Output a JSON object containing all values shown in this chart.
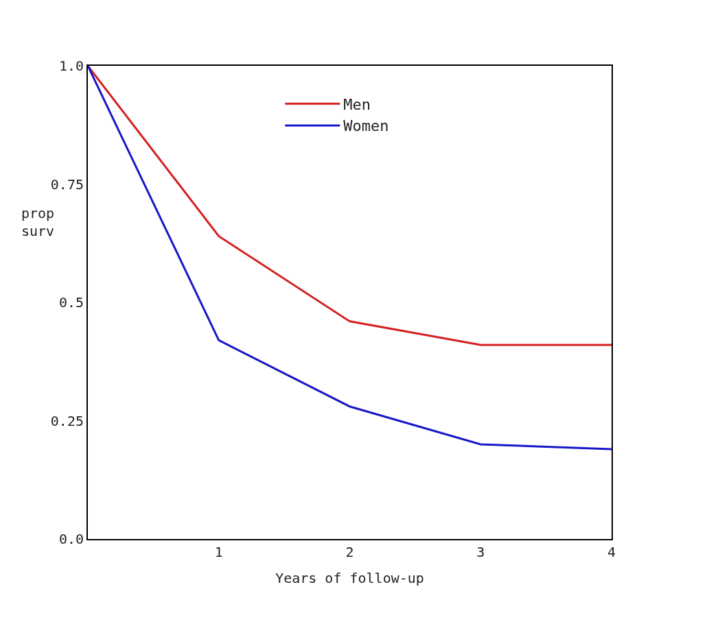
{
  "chart_data": {
    "type": "line",
    "xlabel": "Years of follow-up",
    "ylabel": "prop\nsurv",
    "x": [
      0,
      1,
      2,
      3,
      4
    ],
    "series": [
      {
        "name": "Men",
        "color": "#d42020",
        "values": [
          1.0,
          0.64,
          0.46,
          0.41,
          0.41
        ]
      },
      {
        "name": "Women",
        "color": "#1818c8",
        "values": [
          1.0,
          0.42,
          0.28,
          0.2,
          0.19
        ]
      }
    ],
    "xlim": [
      0,
      4
    ],
    "xticks": [
      1,
      2,
      3,
      4
    ],
    "ylim": [
      0,
      1
    ],
    "yticks": [
      {
        "value": 0,
        "label": "0.0"
      },
      0.25,
      0.5,
      0.75,
      {
        "value": 1,
        "label": "1.0"
      }
    ],
    "legend": "top",
    "marker": "none",
    "line_style": "solid"
  }
}
